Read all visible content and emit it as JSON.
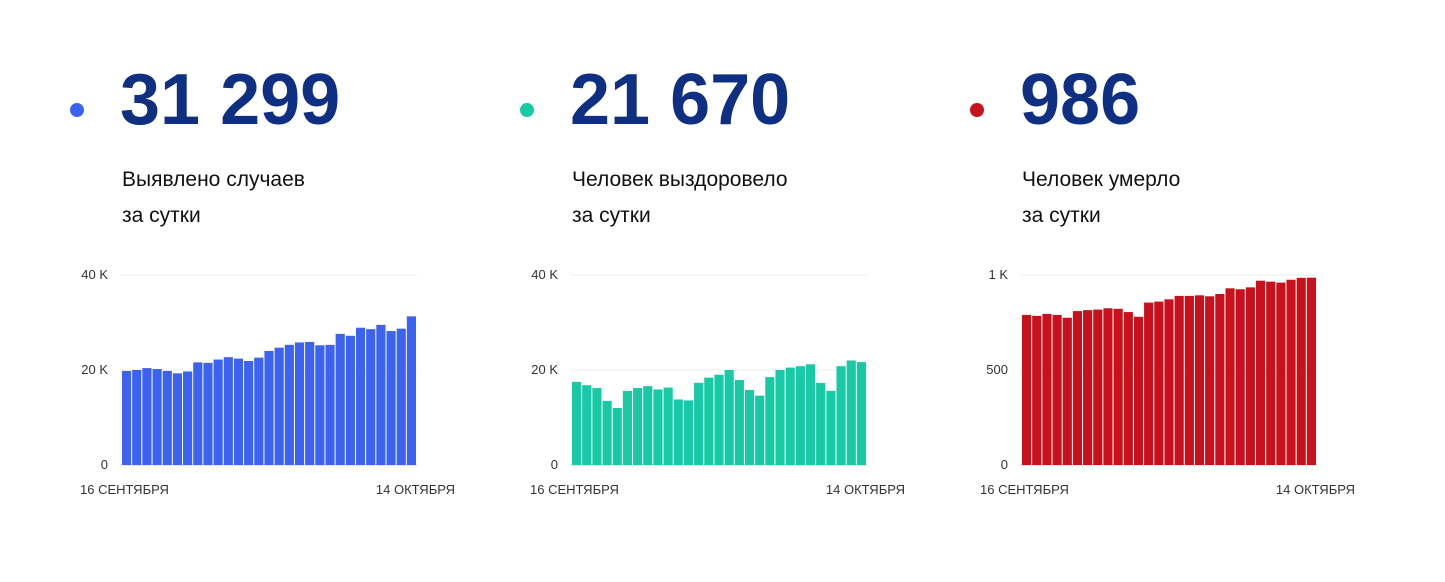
{
  "panels": [
    {
      "value": "31 299",
      "label_line1": "Выявлено случаев",
      "label_line2": "за сутки",
      "color": "#3b63f0",
      "icon": "dot-marker"
    },
    {
      "value": "21 670",
      "label_line1": "Человек выздоровело",
      "label_line2": "за сутки",
      "color": "#17c9a5",
      "icon": "dot-marker"
    },
    {
      "value": "986",
      "label_line1": "Человек умерло",
      "label_line2": "за сутки",
      "color": "#c8111c",
      "icon": "dot-marker"
    }
  ],
  "chart_data": [
    {
      "type": "bar",
      "x_start_label": "16 СЕНТЯБРЯ",
      "x_end_label": "14 ОКТЯБРЯ",
      "ylim": [
        0,
        40000
      ],
      "yticks": [
        0,
        20000,
        40000
      ],
      "ytick_labels": [
        "0",
        "20 K",
        "40 K"
      ],
      "grid": true,
      "color": "#3b63f0",
      "values": [
        19800,
        20000,
        20400,
        20200,
        19800,
        19300,
        19700,
        21600,
        21500,
        22200,
        22700,
        22400,
        21900,
        22600,
        24000,
        24700,
        25300,
        25800,
        25900,
        25200,
        25300,
        27600,
        27200,
        28900,
        28600,
        29500,
        28200,
        28700,
        31299
      ]
    },
    {
      "type": "bar",
      "x_start_label": "16 СЕНТЯБРЯ",
      "x_end_label": "14 ОКТЯБРЯ",
      "ylim": [
        0,
        40000
      ],
      "yticks": [
        0,
        20000,
        40000
      ],
      "ytick_labels": [
        "0",
        "20 K",
        "40 K"
      ],
      "grid": true,
      "color": "#17c9a5",
      "values": [
        17500,
        16800,
        16200,
        13500,
        12000,
        15600,
        16200,
        16600,
        15900,
        16300,
        13800,
        13600,
        17300,
        18400,
        19000,
        20000,
        17900,
        15800,
        14600,
        18500,
        20000,
        20500,
        20800,
        21200,
        17300,
        15600,
        20800,
        22000,
        21670
      ]
    },
    {
      "type": "bar",
      "x_start_label": "16 СЕНТЯБРЯ",
      "x_end_label": "14 ОКТЯБРЯ",
      "ylim": [
        0,
        1000
      ],
      "yticks": [
        0,
        500,
        1000
      ],
      "ytick_labels": [
        "0",
        "500",
        "1 K"
      ],
      "grid": true,
      "color": "#c8111c",
      "values": [
        790,
        785,
        795,
        790,
        775,
        810,
        815,
        818,
        825,
        822,
        805,
        780,
        855,
        860,
        872,
        890,
        890,
        893,
        888,
        900,
        930,
        925,
        935,
        970,
        965,
        960,
        975,
        985,
        986
      ]
    }
  ]
}
